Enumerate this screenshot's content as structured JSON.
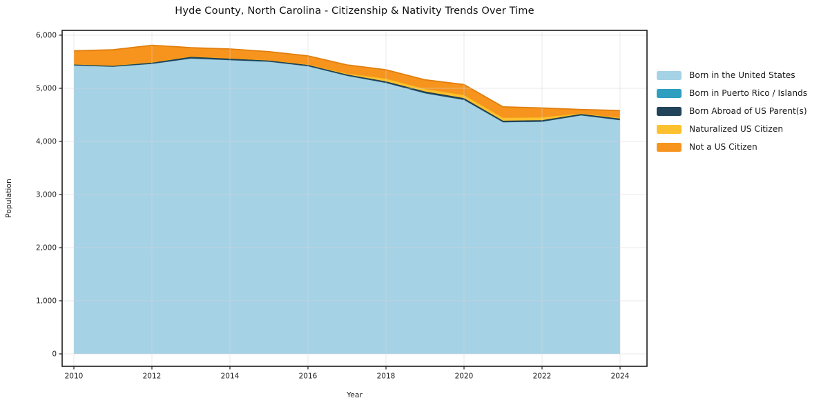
{
  "chart_data": {
    "type": "area",
    "stacked": true,
    "title": "Hyde County, North Carolina - Citizenship & Nativity Trends Over Time",
    "xlabel": "Year",
    "ylabel": "Population",
    "x": [
      2010,
      2011,
      2012,
      2013,
      2014,
      2015,
      2016,
      2017,
      2018,
      2019,
      2020,
      2021,
      2022,
      2023,
      2024
    ],
    "series": [
      {
        "name": "Born in the United States",
        "slug": "born-us",
        "color": "#a6d2e6",
        "edge": "#8fc3da",
        "values": [
          5430,
          5405,
          5460,
          5560,
          5530,
          5500,
          5415,
          5235,
          5100,
          4905,
          4780,
          4360,
          4370,
          4490,
          4400
        ]
      },
      {
        "name": "Born in Puerto Rico / Islands",
        "slug": "born-pr-islands",
        "color": "#2e9fbf",
        "edge": "#27899f",
        "values": [
          0,
          0,
          0,
          0,
          0,
          0,
          0,
          0,
          0,
          0,
          0,
          0,
          0,
          0,
          0
        ]
      },
      {
        "name": "Born Abroad of US Parent(s)",
        "slug": "born-abroad",
        "color": "#21445a",
        "edge": "#183749",
        "values": [
          25,
          25,
          30,
          40,
          30,
          25,
          25,
          25,
          30,
          35,
          35,
          30,
          30,
          25,
          30
        ]
      },
      {
        "name": "Naturalized US Citizen",
        "slug": "naturalized",
        "color": "#fdc02f",
        "edge": "#edaa16",
        "values": [
          0,
          0,
          0,
          0,
          5,
          5,
          10,
          20,
          55,
          50,
          60,
          60,
          55,
          15,
          20
        ]
      },
      {
        "name": "Not a US Citizen",
        "slug": "not-citizen",
        "color": "#f7941e",
        "edge": "#e07f0e",
        "values": [
          250,
          295,
          320,
          165,
          175,
          160,
          160,
          160,
          165,
          170,
          195,
          200,
          175,
          70,
          130
        ]
      }
    ],
    "x_ticks": [
      2010,
      2012,
      2014,
      2016,
      2018,
      2020,
      2022,
      2024
    ],
    "y_ticks": [
      0,
      1000,
      2000,
      3000,
      4000,
      5000,
      6000
    ],
    "ylim": [
      0,
      6000
    ],
    "grid": true,
    "legend_position": "right-outside"
  }
}
